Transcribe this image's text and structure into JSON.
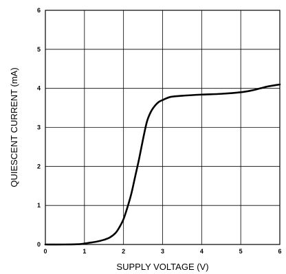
{
  "chart_data": {
    "type": "line",
    "title": "",
    "xlabel": "SUPPLY VOLTAGE (V)",
    "ylabel": "QUIESCENT CURRENT (mA)",
    "xlim": [
      0,
      6
    ],
    "ylim": [
      0,
      6
    ],
    "xticks": [
      "0",
      "1",
      "2",
      "3",
      "4",
      "5",
      "6"
    ],
    "yticks": [
      "0",
      "1",
      "2",
      "3",
      "4",
      "5",
      "6"
    ],
    "grid": true,
    "legend": "none",
    "line_color": "#000000",
    "series": [
      {
        "x": [
          0,
          0.5,
          0.9,
          1.1,
          1.3,
          1.5,
          1.65,
          1.8,
          1.9,
          2.0,
          2.1,
          2.2,
          2.3,
          2.4,
          2.5,
          2.6,
          2.7,
          2.8,
          2.9,
          3.0,
          3.2,
          3.5,
          4.0,
          4.5,
          5.0,
          5.3,
          5.5,
          5.7,
          6.0
        ],
        "y": [
          0.0,
          0.0,
          0.01,
          0.04,
          0.07,
          0.12,
          0.18,
          0.3,
          0.45,
          0.65,
          0.95,
          1.3,
          1.75,
          2.2,
          2.7,
          3.15,
          3.4,
          3.55,
          3.65,
          3.7,
          3.78,
          3.81,
          3.84,
          3.86,
          3.9,
          3.95,
          4.0,
          4.05,
          4.1
        ]
      }
    ]
  }
}
